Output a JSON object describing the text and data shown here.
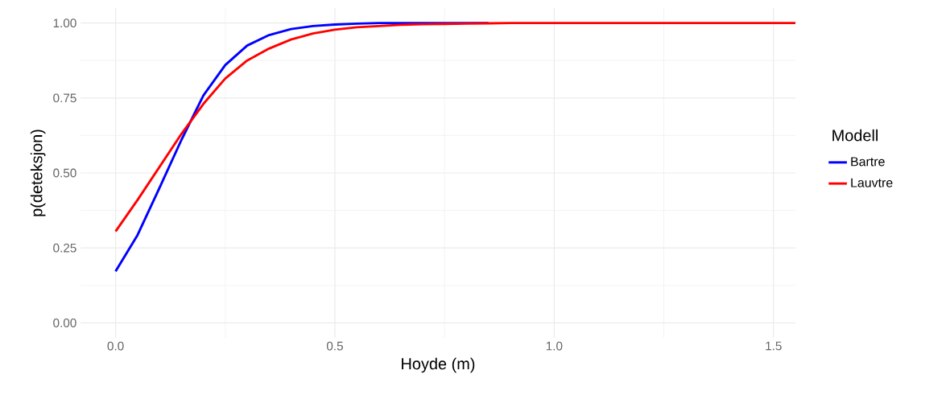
{
  "chart_data": {
    "type": "line",
    "xlabel": "Hoyde (m)",
    "ylabel": "p(deteksjon)",
    "legend_title": "Modell",
    "x": [
      0,
      0.05,
      0.1,
      0.15,
      0.2,
      0.25,
      0.3,
      0.35,
      0.4,
      0.45,
      0.5,
      0.55,
      0.6,
      0.65,
      0.7,
      0.75,
      0.8,
      0.85,
      0.9,
      0.95,
      1.0,
      1.05,
      1.1,
      1.15,
      1.2,
      1.25,
      1.3,
      1.35,
      1.4,
      1.45,
      1.5,
      1.55
    ],
    "series": [
      {
        "name": "Bartre",
        "color": "#0000ff",
        "values": [
          0.172,
          0.293,
          0.45,
          0.61,
          0.758,
          0.86,
          0.925,
          0.96,
          0.98,
          0.99,
          0.995,
          0.998,
          1,
          1,
          1,
          1,
          1,
          1,
          null,
          null,
          null,
          null,
          null,
          null,
          null,
          null,
          null,
          null,
          null,
          null,
          null,
          null
        ]
      },
      {
        "name": "Lauvtre",
        "color": "#ff0000",
        "values": [
          0.305,
          0.41,
          0.52,
          0.63,
          0.73,
          0.815,
          0.875,
          0.915,
          0.945,
          0.965,
          0.978,
          0.986,
          0.99,
          0.994,
          0.996,
          0.997,
          0.998,
          0.999,
          1,
          1,
          1,
          1,
          1,
          1,
          1,
          1,
          1,
          1,
          1,
          1,
          1,
          1
        ]
      }
    ],
    "xlim": [
      -0.08,
      1.55
    ],
    "ylim": [
      -0.05,
      1.05
    ],
    "xticks": [
      {
        "value": 0,
        "label": "0.0"
      },
      {
        "value": 0.5,
        "label": "0.5"
      },
      {
        "value": 1,
        "label": "1.0"
      },
      {
        "value": 1.5,
        "label": "1.5"
      }
    ],
    "yticks": [
      {
        "value": 0,
        "label": "0.00"
      },
      {
        "value": 0.25,
        "label": "0.25"
      },
      {
        "value": 0.5,
        "label": "0.50"
      },
      {
        "value": 0.75,
        "label": "0.75"
      },
      {
        "value": 1,
        "label": "1.00"
      }
    ],
    "grid": true,
    "legend": "right",
    "marker": "none",
    "line_style": "solid"
  }
}
